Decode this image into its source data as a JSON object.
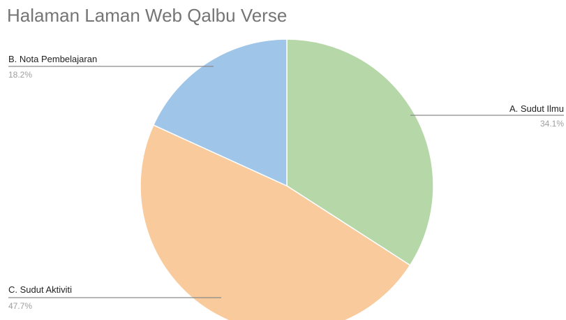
{
  "chart_data": {
    "type": "pie",
    "title": "Halaman Laman Web Qalbu Verse",
    "slices": [
      {
        "label": "A. Sudut Ilmu",
        "value": 34.1,
        "percent_label": "34.1%",
        "color": "#b6d7a8"
      },
      {
        "label": "C. Sudut Aktiviti",
        "value": 47.7,
        "percent_label": "47.7%",
        "color": "#f9cb9c"
      },
      {
        "label": "B. Nota Pembelajaran",
        "value": 18.2,
        "percent_label": "18.2%",
        "color": "#9fc5e8"
      }
    ],
    "start_angle_deg": 0,
    "direction": "clockwise",
    "legend": "none"
  }
}
